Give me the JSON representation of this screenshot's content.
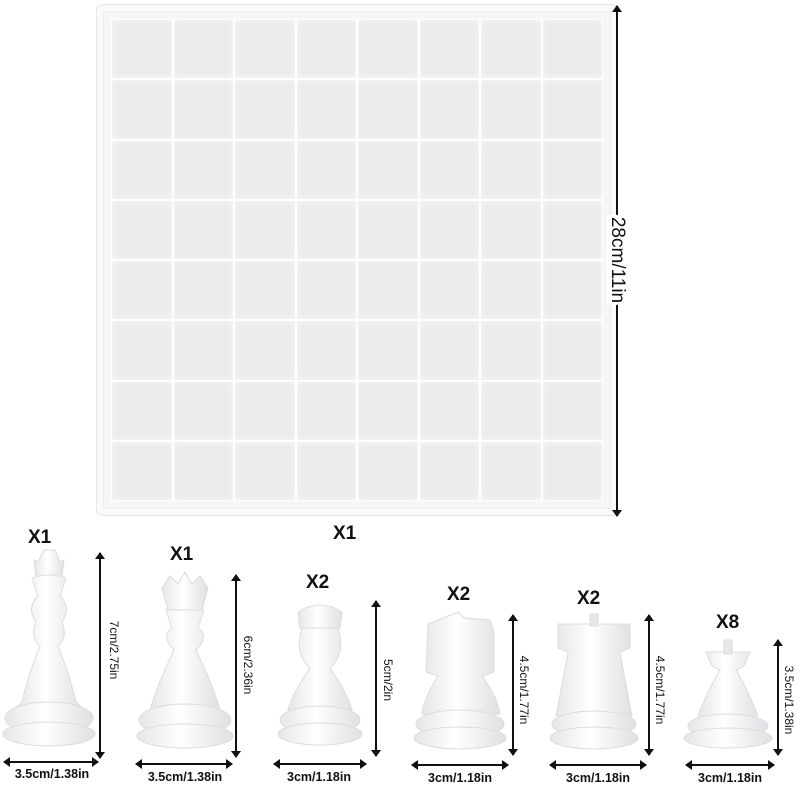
{
  "board": {
    "quantity": "X1",
    "size_label": "28cm/11in",
    "rows": 8,
    "cols": 8
  },
  "pieces": [
    {
      "id": "king",
      "quantity": "X1",
      "height": "7cm/2.75in",
      "width": "3.5cm/1.38in"
    },
    {
      "id": "queen",
      "quantity": "X1",
      "height": "6cm/2.36in",
      "width": "3.5cm/1.38in"
    },
    {
      "id": "bishop",
      "quantity": "X2",
      "height": "5cm/2in",
      "width": "3cm/1.18in"
    },
    {
      "id": "knight",
      "quantity": "X2",
      "height": "4.5cm/1.77in",
      "width": "3cm/1.18in"
    },
    {
      "id": "rook",
      "quantity": "X2",
      "height": "4.5cm/1.77in",
      "width": "3cm/1.18in"
    },
    {
      "id": "pawn",
      "quantity": "X8",
      "height": "3.5cm/1.38in",
      "width": "3cm/1.18in"
    }
  ],
  "colors": {
    "mold": "#f0f0f2",
    "ink": "#111111"
  }
}
